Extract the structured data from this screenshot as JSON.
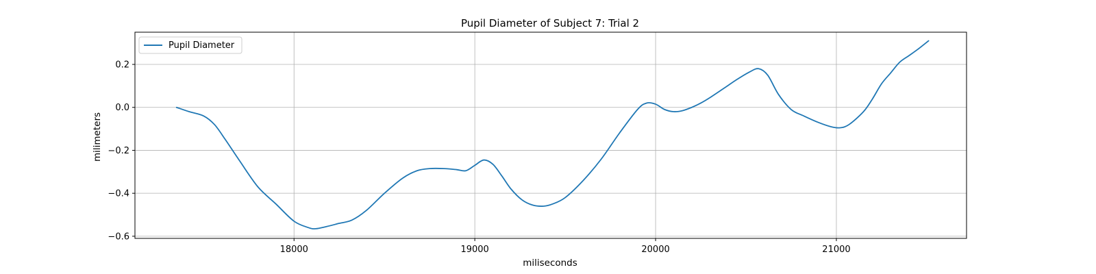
{
  "chart_data": {
    "type": "line",
    "title": "Pupil Diameter of Subject 7: Trial 2",
    "xlabel": "miliseconds",
    "ylabel": "milimeters",
    "xlim": [
      17120,
      21720
    ],
    "ylim": [
      -0.61,
      0.35
    ],
    "xticks": [
      18000,
      19000,
      20000,
      21000
    ],
    "yticks": [
      -0.6,
      -0.4,
      -0.2,
      0.0,
      0.2
    ],
    "ytick_labels": [
      "−0.6",
      "−0.4",
      "−0.2",
      "0.0",
      "0.2"
    ],
    "grid": true,
    "legend_position": "upper-left",
    "series": [
      {
        "name": "Pupil Diameter",
        "color": "#1f77b4",
        "x": [
          17350,
          17420,
          17500,
          17560,
          17620,
          17700,
          17800,
          17900,
          18000,
          18080,
          18120,
          18180,
          18250,
          18320,
          18400,
          18500,
          18600,
          18680,
          18750,
          18830,
          18900,
          18950,
          19000,
          19050,
          19100,
          19150,
          19200,
          19260,
          19320,
          19380,
          19430,
          19500,
          19600,
          19700,
          19800,
          19900,
          19950,
          20000,
          20050,
          20100,
          20150,
          20200,
          20250,
          20300,
          20380,
          20450,
          20520,
          20570,
          20620,
          20680,
          20750,
          20820,
          20900,
          20970,
          21020,
          21070,
          21150,
          21200,
          21250,
          21300,
          21350,
          21400,
          21450,
          21510
        ],
        "y": [
          0.0,
          -0.02,
          -0.04,
          -0.08,
          -0.15,
          -0.25,
          -0.37,
          -0.45,
          -0.53,
          -0.56,
          -0.565,
          -0.555,
          -0.54,
          -0.525,
          -0.48,
          -0.4,
          -0.33,
          -0.295,
          -0.285,
          -0.285,
          -0.29,
          -0.295,
          -0.27,
          -0.245,
          -0.265,
          -0.32,
          -0.38,
          -0.43,
          -0.455,
          -0.46,
          -0.45,
          -0.42,
          -0.34,
          -0.24,
          -0.12,
          -0.01,
          0.02,
          0.015,
          -0.01,
          -0.02,
          -0.015,
          0.0,
          0.02,
          0.045,
          0.09,
          0.13,
          0.165,
          0.18,
          0.15,
          0.06,
          -0.01,
          -0.04,
          -0.07,
          -0.09,
          -0.095,
          -0.08,
          -0.02,
          0.04,
          0.11,
          0.16,
          0.21,
          0.24,
          0.27,
          0.31
        ]
      }
    ]
  }
}
